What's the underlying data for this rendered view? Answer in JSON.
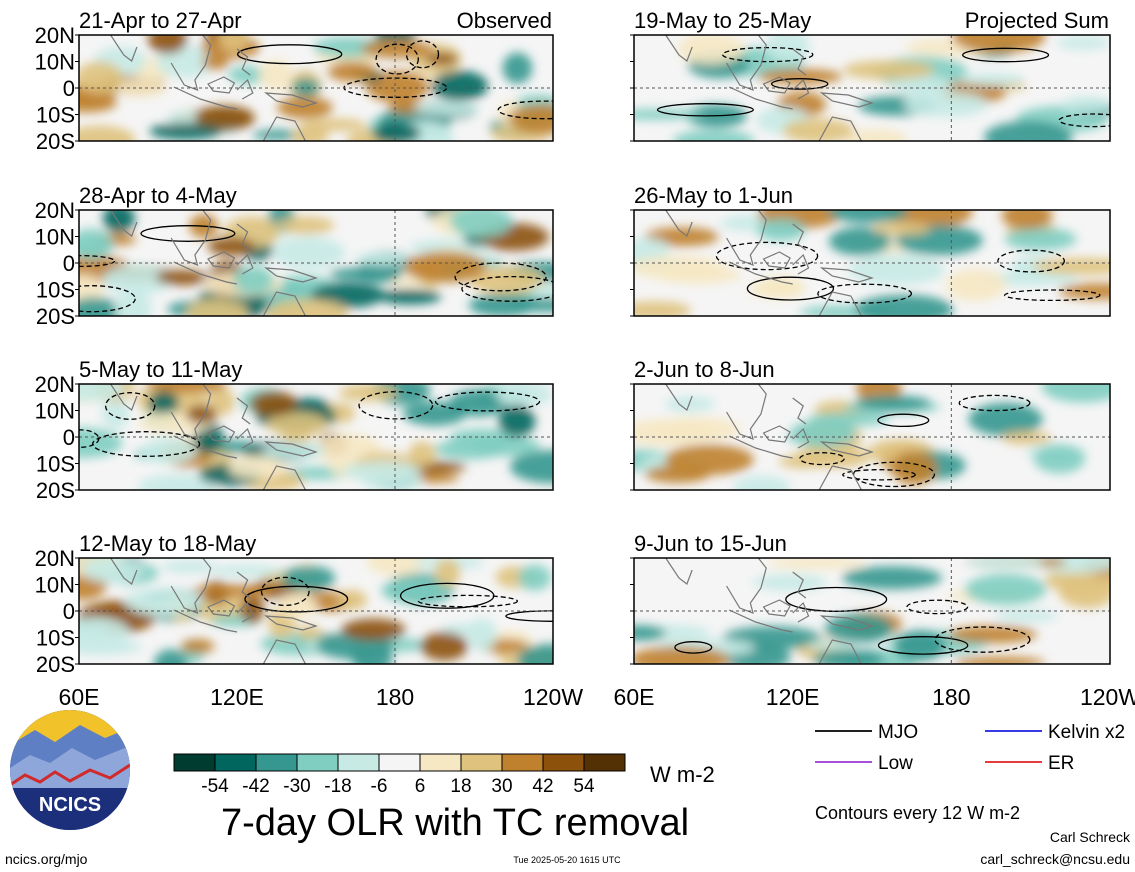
{
  "chart_data": {
    "type": "heatmap",
    "title": "7-day OLR with TC removal",
    "units": "W m-2",
    "column_labels": {
      "left": "Observed",
      "right": "Projected Sum"
    },
    "panels": [
      {
        "column": "left",
        "label": "21-Apr to 27-Apr"
      },
      {
        "column": "left",
        "label": "28-Apr to 4-May"
      },
      {
        "column": "left",
        "label": "5-May to 11-May"
      },
      {
        "column": "left",
        "label": "12-May to 18-May"
      },
      {
        "column": "right",
        "label": "19-May to 25-May"
      },
      {
        "column": "right",
        "label": "26-May to 1-Jun"
      },
      {
        "column": "right",
        "label": "2-Jun to 8-Jun"
      },
      {
        "column": "right",
        "label": "9-Jun to 15-Jun"
      }
    ],
    "lat_ticks": [
      "20N",
      "10N",
      "0",
      "10S",
      "20S"
    ],
    "lon_ticks": [
      "60E",
      "120E",
      "180",
      "120W"
    ],
    "colorbar": {
      "labels": [
        -54,
        -42,
        -30,
        -18,
        -6,
        6,
        18,
        30,
        42,
        54
      ],
      "colors": [
        "#003c30",
        "#01665e",
        "#35978f",
        "#80cdc1",
        "#c7eae5",
        "#f5f5f5",
        "#f6e8c3",
        "#dfc27d",
        "#bf812d",
        "#8c510a",
        "#543005"
      ]
    },
    "legend": [
      {
        "label": "MJO",
        "color": "#000000"
      },
      {
        "label": "Kelvin x2",
        "color": "#1f1fe0"
      },
      {
        "label": "Low",
        "color": "#9b3ad6"
      },
      {
        "label": "ER",
        "color": "#e01f1f"
      }
    ],
    "contour_note": "Contours every 12 W m-2"
  },
  "footer": {
    "logo_text": "NCICS",
    "url": "ncics.org/mjo",
    "timestamp": "Tue 2025-05-20 1615 UTC",
    "author": "Carl Schreck",
    "email": "carl_schreck@ncsu.edu"
  }
}
